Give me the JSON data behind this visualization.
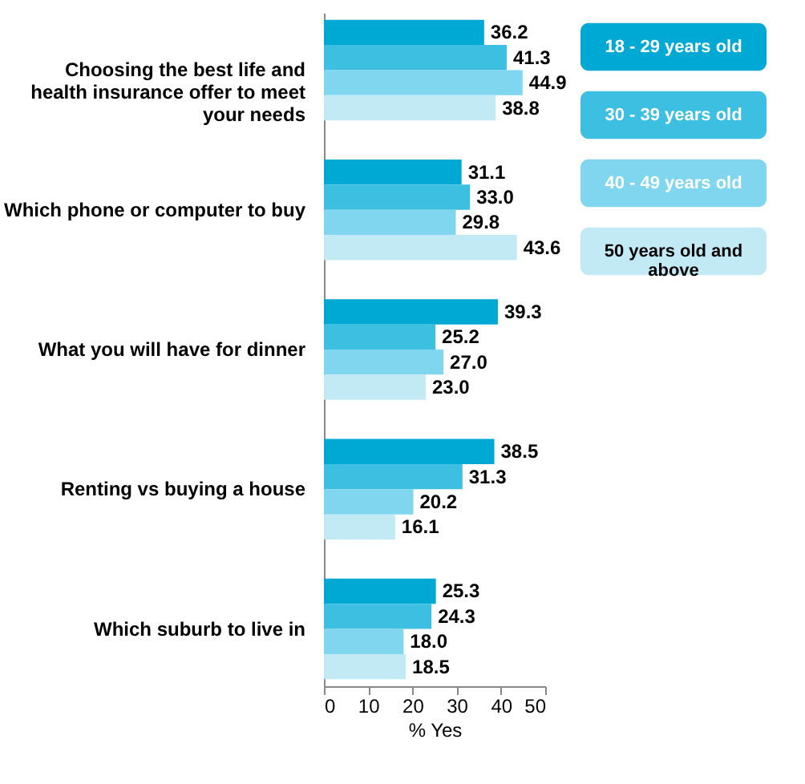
{
  "chart_data": {
    "type": "bar",
    "orientation": "horizontal",
    "categories": [
      "Choosing the best life and health insurance offer to meet your needs",
      "Which phone or computer to buy",
      "What you will have for dinner",
      "Renting vs buying a house",
      "Which suburb to live in"
    ],
    "series": [
      {
        "name": "18 - 29 years old",
        "color": "#00a9d4",
        "values": [
          36.2,
          31.1,
          39.3,
          38.5,
          25.3
        ]
      },
      {
        "name": "30 - 39 years old",
        "color": "#3dbfe2",
        "values": [
          41.3,
          33.0,
          25.2,
          31.3,
          24.3
        ]
      },
      {
        "name": "40 - 49 years old",
        "color": "#7fd6ee",
        "values": [
          44.9,
          29.8,
          27.0,
          20.2,
          18.0
        ]
      },
      {
        "name": "50 years old and above",
        "color": "#c2eaf5",
        "values": [
          38.8,
          43.6,
          23.0,
          16.1,
          18.5
        ]
      }
    ],
    "value_labels": [
      [
        "36.2",
        "31.1",
        "39.3",
        "38.5",
        "25.3"
      ],
      [
        "41.3",
        "33.0",
        "25.2",
        "31.3",
        "24.3"
      ],
      [
        "44.9",
        "29.8",
        "27.0",
        "20.2",
        "18.0"
      ],
      [
        "38.8",
        "43.6",
        "23.0",
        "16.1",
        "18.5"
      ]
    ],
    "xlabel": "% Yes",
    "xlim": [
      0,
      50
    ],
    "xticks": [
      0,
      10,
      20,
      30,
      40,
      50
    ],
    "grid": false,
    "legend": "right"
  }
}
